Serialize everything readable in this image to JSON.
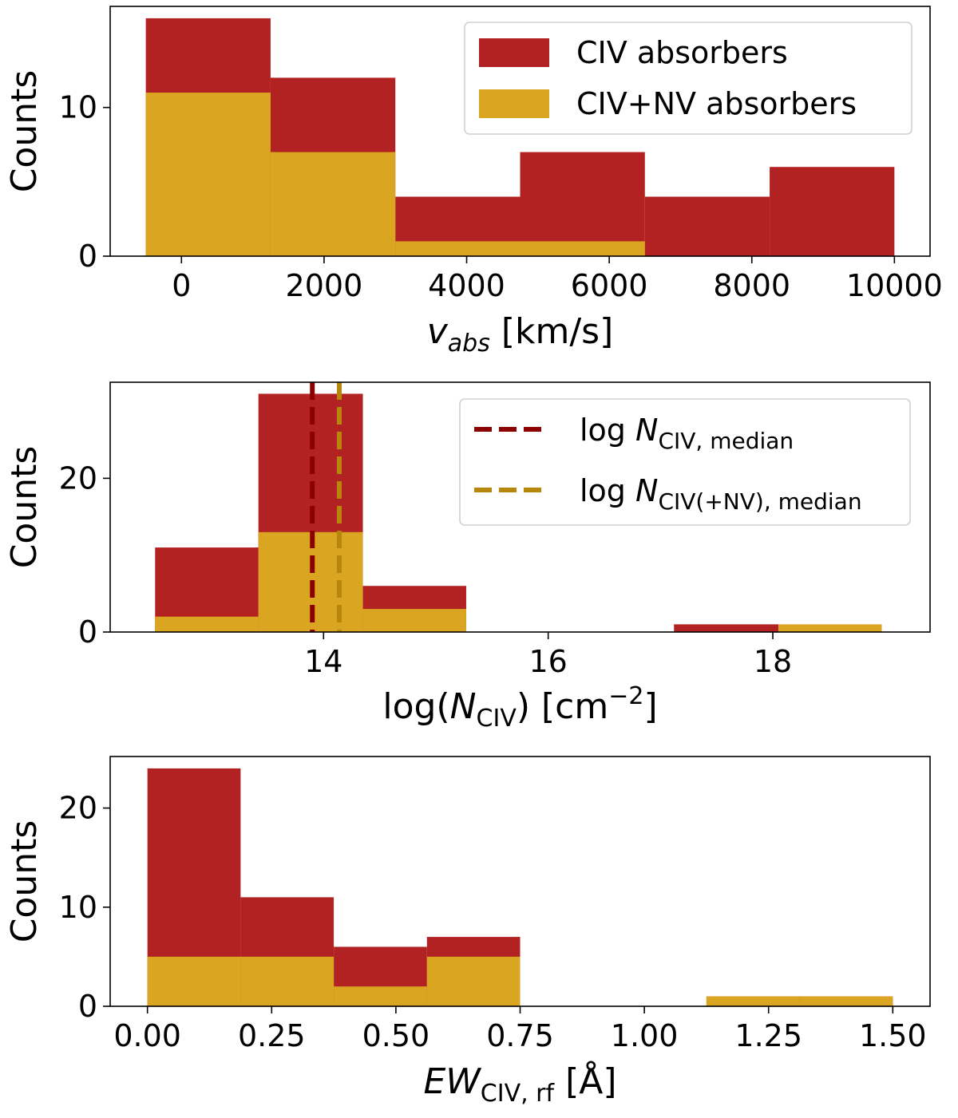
{
  "colors": {
    "civ": "#b22222",
    "civnv": "#daa520",
    "median_civ": "#8b0000",
    "median_civnv": "#b8860b"
  },
  "chart_data": [
    {
      "type": "bar",
      "title": "",
      "ylabel": "Counts",
      "xlabel": {
        "main": "v",
        "sub": "abs",
        "unit": "[km/s]"
      },
      "xlim": [
        -1000,
        10500
      ],
      "ylim": [
        0,
        16.8
      ],
      "xticks": [
        0,
        2000,
        4000,
        6000,
        8000,
        10000
      ],
      "xtick_labels": [
        "0",
        "2000",
        "4000",
        "6000",
        "8000",
        "10000"
      ],
      "yticks": [
        0,
        10
      ],
      "ytick_labels": [
        "0",
        "10"
      ],
      "bin_edges": [
        -500,
        1250,
        3000,
        4750,
        6500,
        8250,
        10000
      ],
      "series": [
        {
          "name": "CIV absorbers",
          "color_key": "civ",
          "values": [
            16,
            12,
            4,
            7,
            4,
            6
          ]
        },
        {
          "name": "CIV+NV absorbers",
          "color_key": "civnv",
          "values": [
            11,
            7,
            1,
            1,
            0,
            0
          ]
        }
      ],
      "legend": {
        "position": "top-right",
        "entries": [
          {
            "label": "CIV absorbers",
            "color_key": "civ",
            "style": "patch"
          },
          {
            "label": "CIV+NV absorbers",
            "color_key": "civnv",
            "style": "patch"
          }
        ]
      }
    },
    {
      "type": "bar",
      "title": "",
      "ylabel": "Counts",
      "xlabel": {
        "pre": "log(",
        "main": "N",
        "sub": "CIV",
        "post": ") [cm",
        "sup": "−2",
        "end": "]"
      },
      "xlim": [
        12.1,
        19.4
      ],
      "ylim": [
        0,
        32.5
      ],
      "xticks": [
        14,
        16,
        18
      ],
      "xtick_labels": [
        "14",
        "16",
        "18"
      ],
      "yticks": [
        0,
        20
      ],
      "ytick_labels": [
        "0",
        "20"
      ],
      "bin_edges": [
        12.5,
        13.42,
        14.35,
        15.27,
        16.2,
        17.12,
        18.05,
        18.97
      ],
      "series": [
        {
          "name": "CIV absorbers",
          "color_key": "civ",
          "values": [
            11,
            31,
            6,
            0,
            0,
            1,
            0
          ]
        },
        {
          "name": "CIV+NV absorbers",
          "color_key": "civnv",
          "values": [
            2,
            13,
            3,
            0,
            0,
            0,
            1
          ]
        }
      ],
      "medians": [
        {
          "value": 13.9,
          "color_key": "median_civ"
        },
        {
          "value": 14.14,
          "color_key": "median_civnv"
        }
      ],
      "legend": {
        "position": "top-right",
        "entries": [
          {
            "pre": "log",
            "main": "N",
            "sub": "CIV, median",
            "color_key": "median_civ",
            "style": "dashed"
          },
          {
            "pre": "log",
            "main": "N",
            "sub": "CIV(+NV), median",
            "color_key": "median_civnv",
            "style": "dashed"
          }
        ]
      }
    },
    {
      "type": "bar",
      "title": "",
      "ylabel": "Counts",
      "xlabel": {
        "main": "EW",
        "sub": "CIV, rf",
        "unit": "[Å]"
      },
      "xlim": [
        -0.075,
        1.575
      ],
      "ylim": [
        0,
        25.2
      ],
      "xticks": [
        0,
        0.25,
        0.5,
        0.75,
        1.0,
        1.25,
        1.5
      ],
      "xtick_labels": [
        "0.00",
        "0.25",
        "0.50",
        "0.75",
        "1.00",
        "1.25",
        "1.50"
      ],
      "yticks": [
        0,
        10,
        20
      ],
      "ytick_labels": [
        "0",
        "10",
        "20"
      ],
      "bin_edges": [
        0,
        0.1875,
        0.375,
        0.5625,
        0.75,
        0.9375,
        1.125,
        1.3125,
        1.5
      ],
      "series": [
        {
          "name": "CIV absorbers",
          "color_key": "civ",
          "values": [
            24,
            11,
            6,
            7,
            0,
            0,
            1,
            1
          ]
        },
        {
          "name": "CIV+NV absorbers",
          "color_key": "civnv",
          "values": [
            5,
            5,
            2,
            5,
            0,
            0,
            1,
            1
          ]
        }
      ]
    }
  ]
}
